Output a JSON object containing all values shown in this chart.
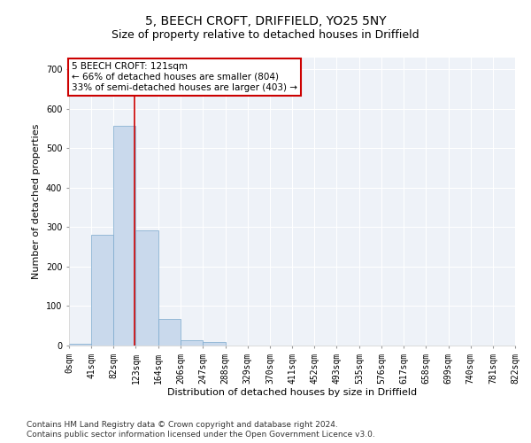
{
  "title": "5, BEECH CROFT, DRIFFIELD, YO25 5NY",
  "subtitle": "Size of property relative to detached houses in Driffield",
  "xlabel": "Distribution of detached houses by size in Driffield",
  "ylabel": "Number of detached properties",
  "footnote1": "Contains HM Land Registry data © Crown copyright and database right 2024.",
  "footnote2": "Contains public sector information licensed under the Open Government Licence v3.0.",
  "bar_values": [
    5,
    281,
    557,
    293,
    68,
    13,
    8,
    0,
    0,
    0,
    0,
    0,
    0,
    0,
    0,
    0,
    0,
    0,
    0,
    0
  ],
  "bin_edges": [
    0,
    41,
    82,
    123,
    164,
    206,
    247,
    288,
    329,
    370,
    411,
    452,
    493,
    535,
    576,
    617,
    658,
    699,
    740,
    781,
    822
  ],
  "tick_labels": [
    "0sqm",
    "41sqm",
    "82sqm",
    "123sqm",
    "164sqm",
    "206sqm",
    "247sqm",
    "288sqm",
    "329sqm",
    "370sqm",
    "411sqm",
    "452sqm",
    "493sqm",
    "535sqm",
    "576sqm",
    "617sqm",
    "658sqm",
    "699sqm",
    "740sqm",
    "781sqm",
    "822sqm"
  ],
  "bar_color": "#c9d9ec",
  "bar_edge_color": "#7aa8cc",
  "vline_x": 121,
  "vline_color": "#cc0000",
  "annotation_line1": "5 BEECH CROFT: 121sqm",
  "annotation_line2": "← 66% of detached houses are smaller (804)",
  "annotation_line3": "33% of semi-detached houses are larger (403) →",
  "ylim": [
    0,
    730
  ],
  "yticks": [
    0,
    100,
    200,
    300,
    400,
    500,
    600,
    700
  ],
  "background_color": "#eef2f8",
  "grid_color": "#ffffff",
  "title_fontsize": 10,
  "subtitle_fontsize": 9,
  "axis_label_fontsize": 8,
  "tick_fontsize": 7,
  "footnote_fontsize": 6.5
}
